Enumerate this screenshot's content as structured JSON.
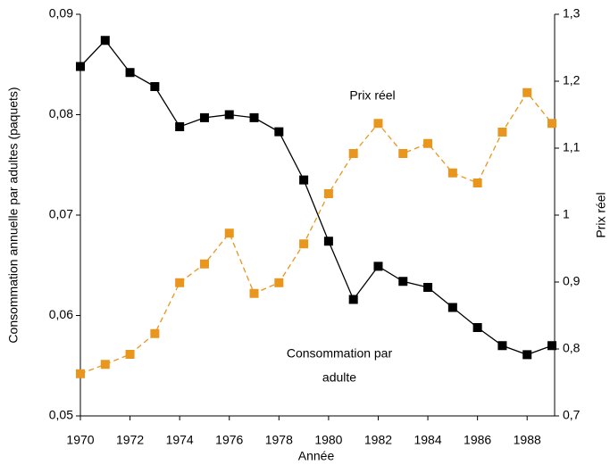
{
  "chart_data": {
    "type": "line",
    "xlabel": "Année",
    "ylabel": "Consommation annuelle par adultes (paquets)",
    "y2label": "Prix réel",
    "annotations": [
      {
        "lines": [
          "Prix réel"
        ]
      },
      {
        "lines": [
          "Consommation par",
          "adulte"
        ]
      }
    ],
    "x": [
      1970,
      1971,
      1972,
      1973,
      1974,
      1975,
      1976,
      1977,
      1978,
      1979,
      1980,
      1981,
      1982,
      1983,
      1984,
      1985,
      1986,
      1987,
      1988,
      1989
    ],
    "xlim": [
      1970,
      1989
    ],
    "xticks": [
      1970,
      1972,
      1974,
      1976,
      1978,
      1980,
      1982,
      1984,
      1986,
      1988
    ],
    "ylim": [
      0.05,
      0.09
    ],
    "yticks": [
      {
        "value": 0.05,
        "label": "0,05"
      },
      {
        "value": 0.06,
        "label": "0,06"
      },
      {
        "value": 0.07,
        "label": "0,07"
      },
      {
        "value": 0.08,
        "label": "0,08"
      },
      {
        "value": 0.09,
        "label": "0,09"
      }
    ],
    "y2lim": [
      0.7,
      1.3
    ],
    "y2ticks": [
      {
        "value": 0.7,
        "label": "0,7"
      },
      {
        "value": 0.8,
        "label": "0,8"
      },
      {
        "value": 0.9,
        "label": "0,9"
      },
      1,
      {
        "value": 1.1,
        "label": "1,1"
      },
      {
        "value": 1.2,
        "label": "1,2"
      },
      {
        "value": 1.3,
        "label": "1,3"
      }
    ],
    "series": [
      {
        "color": "#000000",
        "dashed": false,
        "values": [
          0.0848,
          0.0874,
          0.0842,
          0.0828,
          0.0788,
          0.0797,
          0.08,
          0.0797,
          0.0783,
          0.0735,
          0.0674,
          0.0616,
          0.0649,
          0.0634,
          0.0628,
          0.0608,
          0.0588,
          0.057,
          0.0561,
          0.057
        ]
      },
      {
        "color": "#e8961e",
        "dashed": true,
        "axis": "y2",
        "values": [
          0.763,
          0.777,
          0.792,
          0.823,
          0.899,
          0.927,
          0.973,
          0.883,
          0.899,
          0.957,
          1.032,
          1.092,
          1.137,
          1.092,
          1.107,
          1.063,
          1.048,
          1.124,
          1.183,
          1.137
        ]
      }
    ]
  }
}
